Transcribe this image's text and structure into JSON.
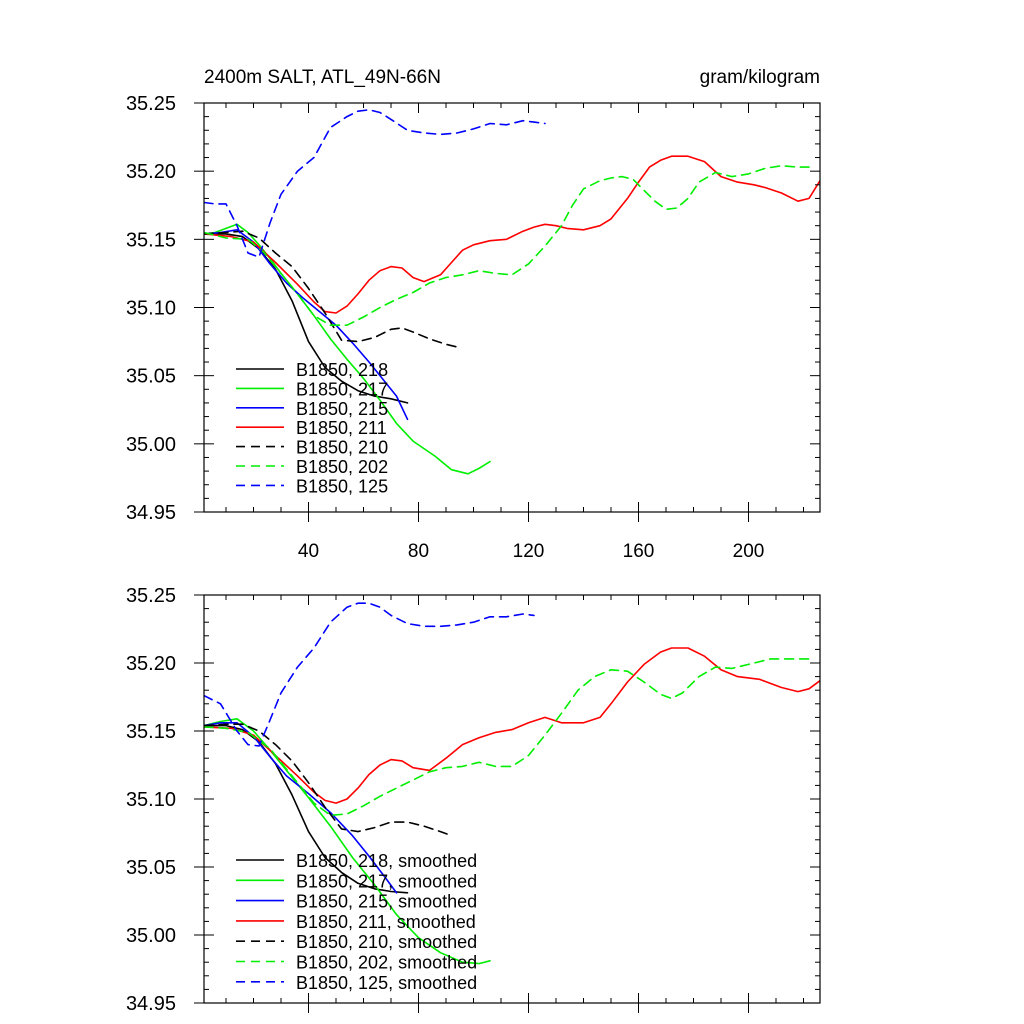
{
  "chart_data": [
    {
      "type": "line",
      "title": "2400m SALT, ATL_49N-66N",
      "units": "gram/kilogram",
      "xlim": [
        2,
        226
      ],
      "ylim": [
        34.95,
        35.25
      ],
      "x_ticks": [
        "40",
        "80",
        "120",
        "160",
        "200"
      ],
      "y_ticks": [
        "35.25",
        "35.20",
        "35.15",
        "35.10",
        "35.05",
        "35.00",
        "34.95"
      ],
      "legend_position": "bottom-left",
      "series": [
        {
          "name": "B1850, 218",
          "color": "#000000",
          "dash": "solid",
          "x": [
            2,
            10,
            16,
            22,
            28,
            34,
            40,
            46,
            52,
            58,
            64,
            70,
            76
          ],
          "y": [
            35.154,
            35.154,
            35.152,
            35.143,
            35.128,
            35.105,
            35.075,
            35.056,
            35.046,
            35.039,
            35.035,
            35.033,
            35.03
          ]
        },
        {
          "name": "B1850, 217",
          "color": "#00ee00",
          "dash": "solid",
          "x": [
            2,
            6,
            10,
            14,
            18,
            22,
            26,
            30,
            36,
            42,
            48,
            54,
            60,
            66,
            72,
            78,
            86,
            92,
            98,
            102,
            106
          ],
          "y": [
            35.154,
            35.155,
            35.158,
            35.161,
            35.155,
            35.146,
            35.136,
            35.125,
            35.11,
            35.094,
            35.077,
            35.062,
            35.048,
            35.032,
            35.015,
            35.002,
            34.991,
            34.981,
            34.978,
            34.982,
            34.987
          ]
        },
        {
          "name": "B1850, 215",
          "color": "#0000ff",
          "dash": "solid",
          "x": [
            2,
            8,
            14,
            20,
            26,
            32,
            38,
            44,
            50,
            56,
            62,
            68,
            72,
            76
          ],
          "y": [
            35.154,
            35.155,
            35.157,
            35.148,
            35.132,
            35.118,
            35.107,
            35.097,
            35.087,
            35.074,
            35.06,
            35.045,
            35.035,
            35.018
          ]
        },
        {
          "name": "B1850, 211",
          "color": "#ff0000",
          "dash": "solid",
          "x": [
            2,
            12,
            20,
            28,
            36,
            42,
            46,
            50,
            54,
            58,
            62,
            66,
            70,
            74,
            78,
            82,
            88,
            92,
            96,
            100,
            106,
            112,
            118,
            122,
            126,
            130,
            134,
            140,
            146,
            150,
            156,
            160,
            164,
            168,
            172,
            178,
            184,
            190,
            196,
            202,
            206,
            212,
            218,
            222,
            226
          ],
          "y": [
            35.154,
            35.152,
            35.148,
            35.133,
            35.117,
            35.104,
            35.097,
            35.096,
            35.101,
            35.11,
            35.12,
            35.127,
            35.13,
            35.129,
            35.122,
            35.119,
            35.124,
            35.133,
            35.142,
            35.146,
            35.149,
            35.15,
            35.156,
            35.159,
            35.161,
            35.16,
            35.158,
            35.157,
            35.16,
            35.165,
            35.18,
            35.192,
            35.203,
            35.208,
            35.211,
            35.211,
            35.207,
            35.196,
            35.192,
            35.19,
            35.188,
            35.184,
            35.178,
            35.18,
            35.193
          ]
        },
        {
          "name": "B1850, 210",
          "color": "#000000",
          "dash": "dashed",
          "x": [
            2,
            10,
            16,
            22,
            28,
            34,
            40,
            46,
            52,
            58,
            64,
            70,
            74,
            78,
            84,
            90,
            94
          ],
          "y": [
            35.154,
            35.155,
            35.156,
            35.151,
            35.14,
            35.13,
            35.114,
            35.096,
            35.076,
            35.075,
            35.078,
            35.084,
            35.085,
            35.082,
            35.077,
            35.073,
            35.071
          ]
        },
        {
          "name": "B1850, 202",
          "color": "#00ee00",
          "dash": "dashed",
          "x": [
            2,
            10,
            18,
            24,
            30,
            36,
            42,
            48,
            54,
            60,
            66,
            72,
            78,
            84,
            90,
            96,
            102,
            108,
            114,
            120,
            126,
            132,
            136,
            140,
            146,
            150,
            154,
            158,
            162,
            166,
            170,
            174,
            178,
            182,
            188,
            194,
            200,
            206,
            212,
            218,
            222
          ],
          "y": [
            35.155,
            35.151,
            35.15,
            35.14,
            35.125,
            35.11,
            35.094,
            35.087,
            35.087,
            35.093,
            35.1,
            35.106,
            35.111,
            35.118,
            35.122,
            35.124,
            35.127,
            35.125,
            35.124,
            35.132,
            35.145,
            35.16,
            35.175,
            35.187,
            35.193,
            35.195,
            35.196,
            35.194,
            35.186,
            35.178,
            35.172,
            35.173,
            35.18,
            35.192,
            35.199,
            35.196,
            35.198,
            35.202,
            35.204,
            35.203,
            35.203
          ]
        },
        {
          "name": "B1850, 125",
          "color": "#0000ff",
          "dash": "dashed",
          "x": [
            2,
            6,
            10,
            14,
            18,
            22,
            26,
            30,
            36,
            42,
            48,
            54,
            58,
            62,
            66,
            70,
            76,
            82,
            88,
            94,
            100,
            106,
            112,
            118,
            122,
            126
          ],
          "y": [
            35.177,
            35.176,
            35.176,
            35.16,
            35.14,
            35.137,
            35.162,
            35.183,
            35.2,
            35.21,
            35.232,
            35.24,
            35.244,
            35.245,
            35.243,
            35.238,
            35.23,
            35.228,
            35.227,
            35.228,
            35.231,
            35.235,
            35.234,
            35.237,
            35.236,
            35.235
          ]
        }
      ]
    },
    {
      "type": "line",
      "title": "",
      "xlim": [
        2,
        226
      ],
      "ylim": [
        34.95,
        35.25
      ],
      "x_ticks": [],
      "y_ticks": [
        "35.25",
        "35.20",
        "35.15",
        "35.10",
        "35.05",
        "35.00",
        "34.95"
      ],
      "legend_position": "bottom-left",
      "series": [
        {
          "name": "B1850, 218, smoothed",
          "color": "#000000",
          "dash": "solid",
          "x": [
            2,
            10,
            16,
            22,
            28,
            34,
            40,
            46,
            52,
            58,
            64,
            70,
            76
          ],
          "y": [
            35.154,
            35.154,
            35.151,
            35.142,
            35.126,
            35.103,
            35.076,
            35.057,
            35.046,
            35.038,
            35.034,
            35.032,
            35.031
          ]
        },
        {
          "name": "B1850, 217, smoothed",
          "color": "#00ee00",
          "dash": "solid",
          "x": [
            2,
            8,
            14,
            20,
            26,
            32,
            40,
            48,
            56,
            64,
            72,
            80,
            88,
            96,
            102,
            106
          ],
          "y": [
            35.154,
            35.157,
            35.159,
            35.15,
            35.136,
            35.121,
            35.101,
            35.08,
            35.057,
            35.037,
            35.015,
            34.998,
            34.987,
            34.98,
            34.979,
            34.981
          ]
        },
        {
          "name": "B1850, 215, smoothed",
          "color": "#0000ff",
          "dash": "solid",
          "x": [
            2,
            8,
            14,
            20,
            26,
            32,
            40,
            48,
            56,
            62,
            68,
            72
          ],
          "y": [
            35.154,
            35.156,
            35.156,
            35.146,
            35.131,
            35.117,
            35.104,
            35.09,
            35.073,
            35.058,
            35.042,
            35.031
          ]
        },
        {
          "name": "B1850, 211, smoothed",
          "color": "#ff0000",
          "dash": "solid",
          "x": [
            2,
            12,
            20,
            28,
            36,
            42,
            46,
            50,
            54,
            58,
            62,
            66,
            70,
            74,
            78,
            84,
            90,
            96,
            102,
            108,
            114,
            120,
            126,
            132,
            140,
            146,
            150,
            156,
            162,
            168,
            172,
            178,
            184,
            190,
            196,
            204,
            212,
            218,
            222,
            226
          ],
          "y": [
            35.153,
            35.152,
            35.147,
            35.132,
            35.117,
            35.105,
            35.099,
            35.097,
            35.1,
            35.108,
            35.118,
            35.125,
            35.129,
            35.128,
            35.123,
            35.121,
            35.13,
            35.14,
            35.145,
            35.149,
            35.151,
            35.156,
            35.16,
            35.156,
            35.156,
            35.16,
            35.17,
            35.186,
            35.199,
            35.208,
            35.211,
            35.211,
            35.205,
            35.195,
            35.19,
            35.188,
            35.182,
            35.179,
            35.181,
            35.187
          ]
        },
        {
          "name": "B1850, 210, smoothed",
          "color": "#000000",
          "dash": "dashed",
          "x": [
            2,
            10,
            16,
            22,
            28,
            34,
            40,
            46,
            52,
            58,
            64,
            70,
            76,
            82,
            88,
            92
          ],
          "y": [
            35.154,
            35.155,
            35.155,
            35.15,
            35.14,
            35.128,
            35.112,
            35.094,
            35.078,
            35.076,
            35.079,
            35.083,
            35.083,
            35.08,
            35.076,
            35.073
          ]
        },
        {
          "name": "B1850, 202, smoothed",
          "color": "#00ee00",
          "dash": "dashed",
          "x": [
            2,
            10,
            18,
            26,
            34,
            42,
            48,
            54,
            60,
            66,
            72,
            78,
            84,
            90,
            96,
            102,
            108,
            114,
            120,
            126,
            132,
            138,
            144,
            150,
            156,
            162,
            168,
            172,
            176,
            182,
            188,
            194,
            200,
            208,
            216,
            222
          ],
          "y": [
            35.153,
            35.152,
            35.149,
            35.137,
            35.117,
            35.097,
            35.088,
            35.089,
            35.095,
            35.102,
            35.108,
            35.114,
            35.12,
            35.123,
            35.124,
            35.127,
            35.124,
            35.124,
            35.132,
            35.147,
            35.163,
            35.18,
            35.19,
            35.195,
            35.194,
            35.186,
            35.177,
            35.174,
            35.178,
            35.19,
            35.197,
            35.196,
            35.199,
            35.203,
            35.203,
            35.203
          ]
        },
        {
          "name": "B1850, 125, smoothed",
          "color": "#0000ff",
          "dash": "dashed",
          "x": [
            2,
            8,
            14,
            18,
            22,
            26,
            30,
            36,
            42,
            48,
            54,
            58,
            62,
            66,
            70,
            76,
            82,
            88,
            94,
            100,
            106,
            112,
            118,
            122
          ],
          "y": [
            35.176,
            35.17,
            35.15,
            35.14,
            35.139,
            35.158,
            35.178,
            35.197,
            35.211,
            35.23,
            35.241,
            35.244,
            35.244,
            35.241,
            35.235,
            35.229,
            35.227,
            35.227,
            35.228,
            35.23,
            35.234,
            35.234,
            35.236,
            35.235
          ]
        }
      ]
    }
  ]
}
